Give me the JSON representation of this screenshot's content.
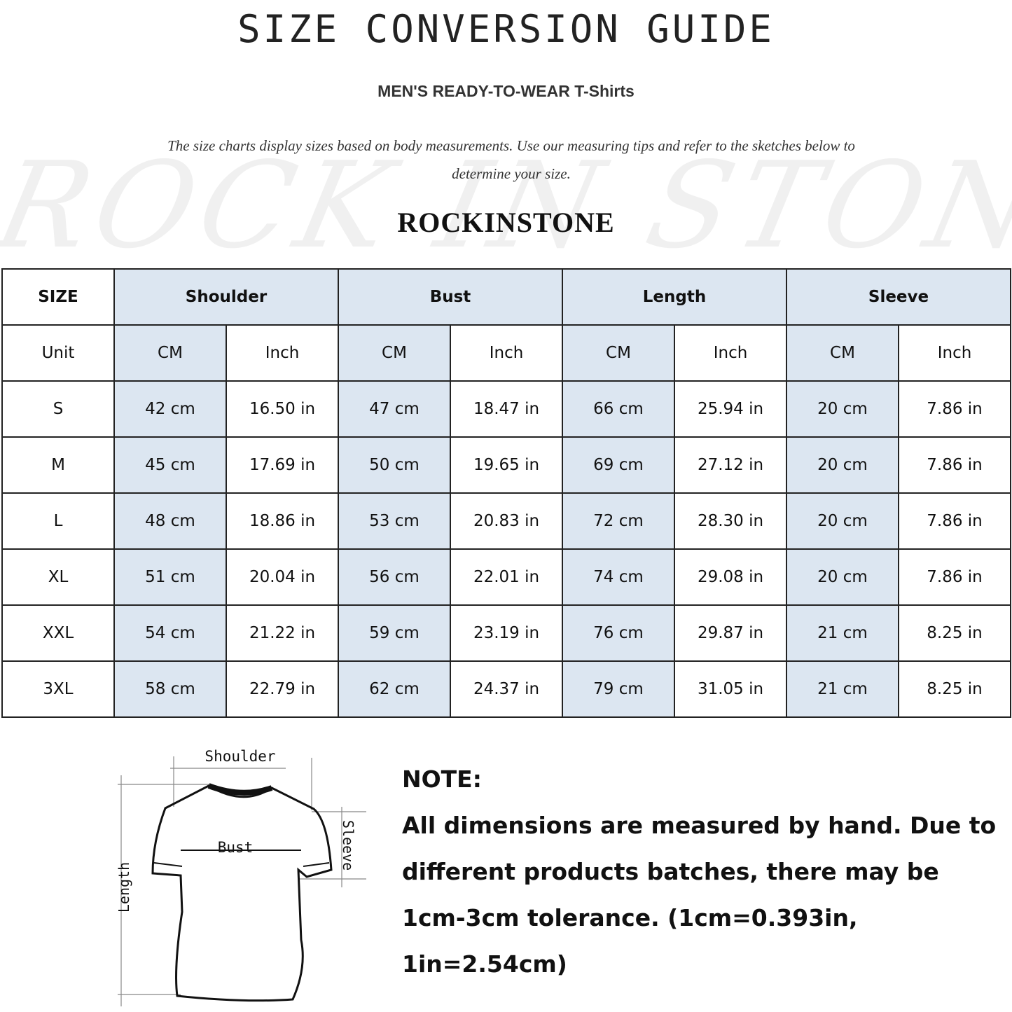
{
  "title": "SIZE CONVERSION GUIDE",
  "subtitle": "MEN'S READY-TO-WEAR T-Shirts",
  "description": "The size charts display sizes based on body measurements. Use our measuring tips and refer to the sketches below to determine your size.",
  "watermark": "ROCK IN STONE",
  "brand": "ROCKINSTONE",
  "colors": {
    "header_fill": "#dce6f1",
    "border": "#222222"
  },
  "table": {
    "size_header": "SIZE",
    "groups": [
      "Shoulder",
      "Bust",
      "Length",
      "Sleeve"
    ],
    "unit_label": "Unit",
    "units": [
      "CM",
      "Inch",
      "CM",
      "Inch",
      "CM",
      "Inch",
      "CM",
      "Inch"
    ],
    "rows": [
      [
        "S",
        "42 cm",
        "16.50 in",
        "47 cm",
        "18.47  in",
        "66 cm",
        "25.94  in",
        "20 cm",
        "7.86  in"
      ],
      [
        "M",
        "45 cm",
        "17.69  in",
        "50 cm",
        "19.65  in",
        "69 cm",
        "27.12  in",
        "20 cm",
        "7.86  in"
      ],
      [
        "L",
        "48 cm",
        "18.86  in",
        "53 cm",
        "20.83  in",
        "72 cm",
        "28.30  in",
        "20 cm",
        "7.86  in"
      ],
      [
        "XL",
        "51 cm",
        "20.04  in",
        "56 cm",
        "22.01  in",
        "74 cm",
        "29.08  in",
        "20 cm",
        "7.86  in"
      ],
      [
        "XXL",
        "54 cm",
        "21.22  in",
        "59 cm",
        "23.19  in",
        "76 cm",
        "29.87  in",
        "21 cm",
        "8.25  in"
      ],
      [
        "3XL",
        "58 cm",
        "22.79  in",
        "62 cm",
        "24.37  in",
        "79 cm",
        "31.05  in",
        "21 cm",
        "8.25  in"
      ]
    ]
  },
  "diagram": {
    "shoulder": "Shoulder",
    "bust": "Bust",
    "sleeve": "Sleeve",
    "length": "Length"
  },
  "note": {
    "heading": "NOTE:",
    "lines": [
      "All dimensions are measured by hand. Due to",
      "different products batches, there may be",
      "1cm-3cm tolerance. (1cm=0.393in, 1in=2.54cm)"
    ]
  }
}
